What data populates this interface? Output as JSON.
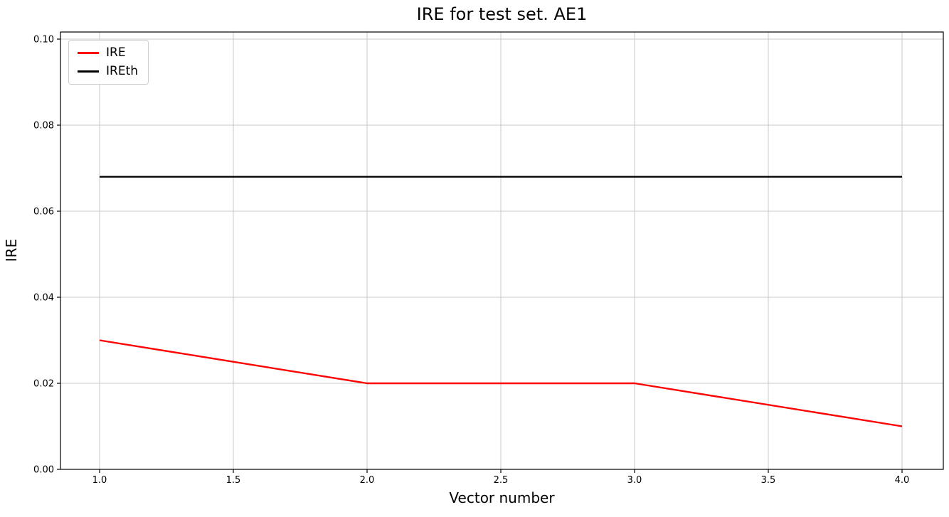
{
  "chart": {
    "title": "IRE for test set. AE1",
    "xlabel": "Vector number",
    "ylabel": "IRE"
  },
  "chart_data": {
    "type": "line",
    "title": "IRE for test set. AE1",
    "xlabel": "Vector number",
    "ylabel": "IRE",
    "x": [
      1.0,
      2.0,
      3.0,
      4.0
    ],
    "series": [
      {
        "name": "IRE",
        "color": "#ff0000",
        "values": [
          0.03,
          0.02,
          0.02,
          0.01
        ]
      },
      {
        "name": "IREth",
        "color": "#000000",
        "values": [
          0.068,
          0.068,
          0.068,
          0.068
        ]
      }
    ],
    "xlim": [
      0.85,
      4.15
    ],
    "ylim": [
      0.0,
      0.1
    ],
    "xticks": [
      1.0,
      1.5,
      2.0,
      2.5,
      3.0,
      3.5,
      4.0
    ],
    "yticks": [
      0.0,
      0.02,
      0.04,
      0.06,
      0.08,
      0.1
    ],
    "grid": true,
    "legend_position": "upper left",
    "colors": {
      "grid": "#c8c8c8",
      "frame": "#000000",
      "background": "#ffffff"
    }
  }
}
